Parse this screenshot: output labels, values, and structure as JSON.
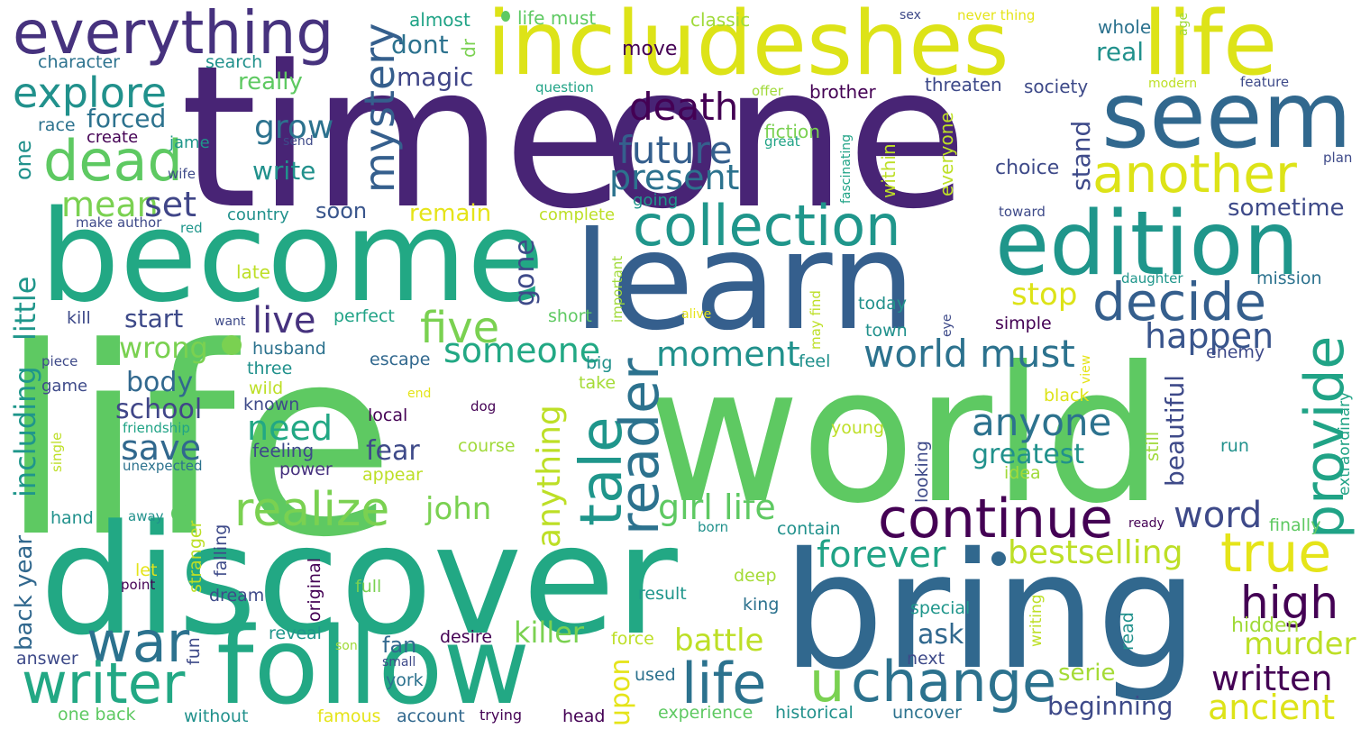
{
  "words": [
    {
      "text": "life",
      "color": "#5ec962"
    },
    {
      "text": "world",
      "color": "#5ec962"
    },
    {
      "text": "time",
      "color": "#482475"
    },
    {
      "text": "one",
      "color": "#482475"
    },
    {
      "text": "discover",
      "color": "#22a884"
    },
    {
      "text": "bring",
      "color": "#31688e"
    },
    {
      "text": "become",
      "color": "#22a884"
    },
    {
      "text": "learn",
      "color": "#355f8d"
    },
    {
      "text": "includeshes",
      "color": "#dde318"
    },
    {
      "text": "life",
      "color": "#dde318"
    },
    {
      "text": "follow",
      "color": "#22a884"
    },
    {
      "text": "seem",
      "color": "#31688e"
    },
    {
      "text": "edition",
      "color": "#1f968b"
    },
    {
      "text": "everything",
      "color": "#46327e"
    },
    {
      "text": "collection",
      "color": "#1f968b"
    },
    {
      "text": "continue",
      "color": "#440154"
    },
    {
      "text": "another",
      "color": "#dde318"
    },
    {
      "text": "dead",
      "color": "#5ec962"
    },
    {
      "text": "decide",
      "color": "#355f8d"
    },
    {
      "text": "provide",
      "color": "#20a386"
    },
    {
      "text": "tale",
      "color": "#1f968b"
    },
    {
      "text": "reader",
      "color": "#2c728e"
    },
    {
      "text": "war",
      "color": "#2c728e"
    },
    {
      "text": "writer",
      "color": "#22a884"
    },
    {
      "text": "life",
      "color": "#2c728e"
    },
    {
      "text": "u",
      "color": "#7ad151"
    },
    {
      "text": "change",
      "color": "#2c728e"
    },
    {
      "text": "true",
      "color": "#e5e419"
    },
    {
      "text": "realize",
      "color": "#7ad151"
    },
    {
      "text": "high",
      "color": "#440154"
    },
    {
      "text": "five",
      "color": "#7ad151"
    },
    {
      "text": "world must",
      "color": "#2c728e"
    },
    {
      "text": "explore",
      "color": "#21918c"
    },
    {
      "text": "mystery",
      "color": "#355f8d"
    },
    {
      "text": "future",
      "color": "#355f8d"
    },
    {
      "text": "present",
      "color": "#2c728e"
    },
    {
      "text": "death",
      "color": "#440154"
    },
    {
      "text": "someone",
      "color": "#22a884"
    },
    {
      "text": "moment",
      "color": "#21918c"
    },
    {
      "text": "anyone",
      "color": "#2c728e"
    },
    {
      "text": "happen",
      "color": "#39558c"
    },
    {
      "text": "live",
      "color": "#46327e"
    },
    {
      "text": "forever",
      "color": "#20a386"
    },
    {
      "text": "girl life",
      "color": "#5ec962"
    },
    {
      "text": "bestselling",
      "color": "#bddf26"
    },
    {
      "text": "word",
      "color": "#3e4a89"
    },
    {
      "text": "need",
      "color": "#22a884"
    },
    {
      "text": "save",
      "color": "#31688e"
    },
    {
      "text": "mean",
      "color": "#7ad151"
    },
    {
      "text": "set",
      "color": "#404688"
    },
    {
      "text": "grow",
      "color": "#2c728e"
    },
    {
      "text": "wrong",
      "color": "#7ad151"
    },
    {
      "text": "anything",
      "color": "#bddf26"
    },
    {
      "text": "john",
      "color": "#7ad151"
    },
    {
      "text": "written",
      "color": "#440154"
    },
    {
      "text": "ancient",
      "color": "#dde318"
    },
    {
      "text": "murder",
      "color": "#bddf26"
    },
    {
      "text": "battle",
      "color": "#bddf26"
    },
    {
      "text": "killer",
      "color": "#7ad151"
    },
    {
      "text": "stop",
      "color": "#dde318"
    },
    {
      "text": "greatest",
      "color": "#21918c"
    },
    {
      "text": "beautiful",
      "color": "#3e4a89"
    },
    {
      "text": "including",
      "color": "#1f968b"
    },
    {
      "text": "little",
      "color": "#1f968b"
    },
    {
      "text": "upon",
      "color": "#e5e419"
    },
    {
      "text": "forced",
      "color": "#2c728e"
    },
    {
      "text": "write",
      "color": "#21918c"
    },
    {
      "text": "body",
      "color": "#31688e"
    },
    {
      "text": "school",
      "color": "#404688"
    },
    {
      "text": "fear",
      "color": "#3e4a89"
    },
    {
      "text": "gone",
      "color": "#3e4a89"
    },
    {
      "text": "start",
      "color": "#3e4a89"
    },
    {
      "text": "magic",
      "color": "#404688"
    },
    {
      "text": "dont",
      "color": "#2c728e"
    },
    {
      "text": "real",
      "color": "#21918c"
    },
    {
      "text": "stand",
      "color": "#3e4a89"
    },
    {
      "text": "sometime",
      "color": "#3e4a89"
    },
    {
      "text": "beginning",
      "color": "#3e4a89"
    },
    {
      "text": "remain",
      "color": "#e5e419"
    },
    {
      "text": "soon",
      "color": "#39558c"
    },
    {
      "text": "really",
      "color": "#5ec962"
    },
    {
      "text": "back year",
      "color": "#31688e"
    },
    {
      "text": "ask",
      "color": "#31688e"
    },
    {
      "text": "serie",
      "color": "#a5db36"
    },
    {
      "text": "choice",
      "color": "#3e4a89"
    },
    {
      "text": "one",
      "color": "#21918c"
    },
    {
      "text": "fan",
      "color": "#31688e"
    },
    {
      "text": "hidden",
      "color": "#a0da39"
    },
    {
      "text": "move",
      "color": "#440154"
    },
    {
      "text": "everyone",
      "color": "#bddf26"
    },
    {
      "text": "within",
      "color": "#bddf26"
    },
    {
      "text": "threaten",
      "color": "#3e4a89"
    },
    {
      "text": "society",
      "color": "#3e4a89"
    },
    {
      "text": "brother",
      "color": "#440154"
    },
    {
      "text": "fiction",
      "color": "#7ad151"
    },
    {
      "text": "whole",
      "color": "#2c728e"
    },
    {
      "text": "character",
      "color": "#2c728e"
    },
    {
      "text": "search",
      "color": "#21918c"
    },
    {
      "text": "almost",
      "color": "#20a386"
    },
    {
      "text": "life must",
      "color": "#5ec962"
    },
    {
      "text": "classic",
      "color": "#a0da39"
    },
    {
      "text": "dr",
      "color": "#7ad151"
    },
    {
      "text": "race",
      "color": "#2c728e"
    },
    {
      "text": "create",
      "color": "#440154"
    },
    {
      "text": "jame",
      "color": "#1f968b"
    },
    {
      "text": "send",
      "color": "#3e4a89"
    },
    {
      "text": "wife",
      "color": "#3e4a89"
    },
    {
      "text": "make author",
      "color": "#3e4a89"
    },
    {
      "text": "red",
      "color": "#1f968b"
    },
    {
      "text": "country",
      "color": "#21918c"
    },
    {
      "text": "complete",
      "color": "#bddf26"
    },
    {
      "text": "going",
      "color": "#1f968b"
    },
    {
      "text": "late",
      "color": "#bddf26"
    },
    {
      "text": "kill",
      "color": "#3e4a89"
    },
    {
      "text": "want",
      "color": "#3e4a89"
    },
    {
      "text": "perfect",
      "color": "#20a386"
    },
    {
      "text": "short",
      "color": "#5ec962"
    },
    {
      "text": "husband",
      "color": "#2c728e"
    },
    {
      "text": "escape",
      "color": "#31688e"
    },
    {
      "text": "three",
      "color": "#21918c"
    },
    {
      "text": "wild",
      "color": "#bddf26"
    },
    {
      "text": "known",
      "color": "#3e4a89"
    },
    {
      "text": "local",
      "color": "#440154"
    },
    {
      "text": "dog",
      "color": "#440154"
    },
    {
      "text": "game",
      "color": "#3e4a89"
    },
    {
      "text": "piece",
      "color": "#3e4a89"
    },
    {
      "text": "friendship",
      "color": "#20a386"
    },
    {
      "text": "single",
      "color": "#bddf26"
    },
    {
      "text": "unexpected",
      "color": "#2c728e"
    },
    {
      "text": "feeling",
      "color": "#3e4a89"
    },
    {
      "text": "power",
      "color": "#46327e"
    },
    {
      "text": "appear",
      "color": "#bddf26"
    },
    {
      "text": "course",
      "color": "#a0da39"
    },
    {
      "text": "hand",
      "color": "#21918c"
    },
    {
      "text": "away",
      "color": "#21918c"
    },
    {
      "text": "stranger",
      "color": "#bddf26"
    },
    {
      "text": "falling",
      "color": "#3e4a89"
    },
    {
      "text": "original",
      "color": "#440154"
    },
    {
      "text": "born",
      "color": "#21918c"
    },
    {
      "text": "contain",
      "color": "#21918c"
    },
    {
      "text": "let",
      "color": "#e5e419"
    },
    {
      "text": "point",
      "color": "#440154"
    },
    {
      "text": "dream",
      "color": "#3e4a89"
    },
    {
      "text": "full",
      "color": "#7ad151"
    },
    {
      "text": "deep",
      "color": "#a5db36"
    },
    {
      "text": "result",
      "color": "#1f968b"
    },
    {
      "text": "king",
      "color": "#2c728e"
    },
    {
      "text": "special",
      "color": "#1f968b"
    },
    {
      "text": "answer",
      "color": "#3e4a89"
    },
    {
      "text": "fun",
      "color": "#3e4a89"
    },
    {
      "text": "reveal",
      "color": "#1f968b"
    },
    {
      "text": "son",
      "color": "#a0da39"
    },
    {
      "text": "small",
      "color": "#3e4a89"
    },
    {
      "text": "york",
      "color": "#2c728e"
    },
    {
      "text": "desire",
      "color": "#440154"
    },
    {
      "text": "force",
      "color": "#bddf26"
    },
    {
      "text": "used",
      "color": "#2c728e"
    },
    {
      "text": "next",
      "color": "#3e4a89"
    },
    {
      "text": "writing",
      "color": "#bddf26"
    },
    {
      "text": "read",
      "color": "#21918c"
    },
    {
      "text": "one back",
      "color": "#5ec962"
    },
    {
      "text": "without",
      "color": "#21918c"
    },
    {
      "text": "famous",
      "color": "#e5e419"
    },
    {
      "text": "account",
      "color": "#31688e"
    },
    {
      "text": "trying",
      "color": "#440154"
    },
    {
      "text": "head",
      "color": "#440154"
    },
    {
      "text": "experience",
      "color": "#5ec962"
    },
    {
      "text": "historical",
      "color": "#21918c"
    },
    {
      "text": "uncover",
      "color": "#2c728e"
    },
    {
      "text": "today",
      "color": "#21918c"
    },
    {
      "text": "town",
      "color": "#21918c"
    },
    {
      "text": "simple",
      "color": "#440154"
    },
    {
      "text": "eye",
      "color": "#3e4a89"
    },
    {
      "text": "view",
      "color": "#e5e419"
    },
    {
      "text": "black",
      "color": "#dde318"
    },
    {
      "text": "young",
      "color": "#bddf26"
    },
    {
      "text": "idea",
      "color": "#a0da39"
    },
    {
      "text": "looking",
      "color": "#3e4a89"
    },
    {
      "text": "still",
      "color": "#a0da39"
    },
    {
      "text": "run",
      "color": "#21918c"
    },
    {
      "text": "ready",
      "color": "#440154"
    },
    {
      "text": "finally",
      "color": "#5ec962"
    },
    {
      "text": "extraordinary",
      "color": "#20a386"
    },
    {
      "text": "enemy",
      "color": "#3e4a89"
    },
    {
      "text": "mission",
      "color": "#2c728e"
    },
    {
      "text": "daughter",
      "color": "#1f968b"
    },
    {
      "text": "toward",
      "color": "#3e4a89"
    },
    {
      "text": "plan",
      "color": "#3e4a89"
    },
    {
      "text": "feature",
      "color": "#3e4a89"
    },
    {
      "text": "modern",
      "color": "#bddf26"
    },
    {
      "text": "age",
      "color": "#a0da39"
    },
    {
      "text": "never thing",
      "color": "#e5e419"
    },
    {
      "text": "sex",
      "color": "#3e4a89"
    },
    {
      "text": "question",
      "color": "#20a386"
    },
    {
      "text": "offer",
      "color": "#a0da39"
    },
    {
      "text": "great",
      "color": "#20a386"
    },
    {
      "text": "fascinating",
      "color": "#20a386"
    },
    {
      "text": "important",
      "color": "#a0da39"
    },
    {
      "text": "alive",
      "color": "#e5e419"
    },
    {
      "text": "may find",
      "color": "#bddf26"
    },
    {
      "text": "feel",
      "color": "#21918c"
    },
    {
      "text": "big",
      "color": "#21918c"
    },
    {
      "text": "take",
      "color": "#a5db36"
    },
    {
      "text": "end",
      "color": "#e5e419"
    }
  ]
}
